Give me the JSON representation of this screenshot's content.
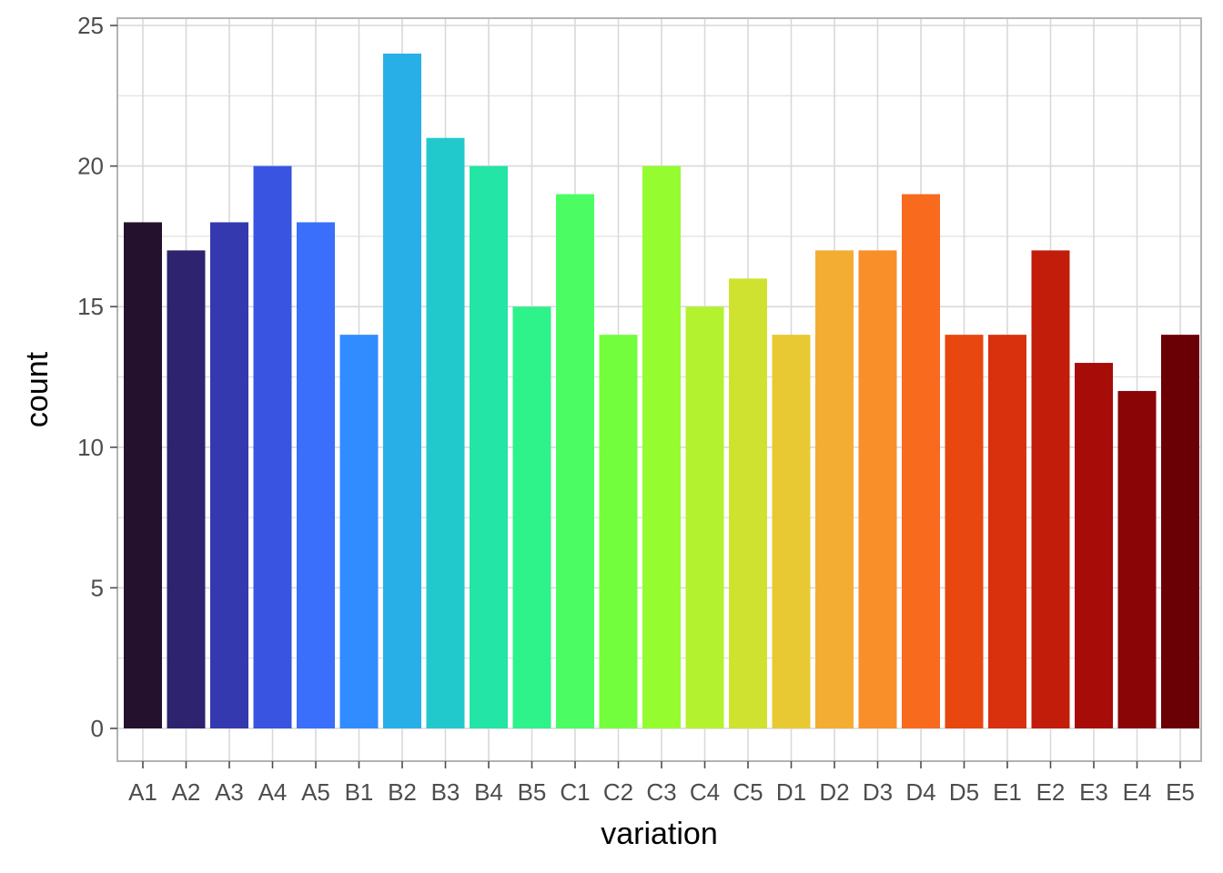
{
  "chart_data": {
    "type": "bar",
    "xlabel": "variation",
    "ylabel": "count",
    "ylim": [
      0,
      25
    ],
    "yticks": [
      0,
      5,
      10,
      15,
      20,
      25
    ],
    "grid": true,
    "legend": "none",
    "categories": [
      "A1",
      "A2",
      "A3",
      "A4",
      "A5",
      "B1",
      "B2",
      "B3",
      "B4",
      "B5",
      "C1",
      "C2",
      "C3",
      "C4",
      "C5",
      "D1",
      "D2",
      "D3",
      "D4",
      "D5",
      "E1",
      "E2",
      "E3",
      "E4",
      "E5"
    ],
    "values": [
      18,
      17,
      18,
      20,
      18,
      14,
      24,
      21,
      20,
      15,
      19,
      14,
      20,
      15,
      16,
      14,
      17,
      17,
      19,
      14,
      14,
      17,
      13,
      12,
      14
    ],
    "colors": [
      "#23112e",
      "#2e236e",
      "#3439b0",
      "#3854e0",
      "#3a6ffb",
      "#318cff",
      "#28afe8",
      "#22c9cc",
      "#23e5a6",
      "#2ef28a",
      "#4bfd62",
      "#73fe3d",
      "#95fc2f",
      "#b3f22f",
      "#cfe22f",
      "#e8c933",
      "#f4ad33",
      "#f88f28",
      "#f86a1e",
      "#e8470f",
      "#d9310d",
      "#c21c0a",
      "#a70c08",
      "#8a0506",
      "#6a0006"
    ],
    "panel_border_color": "#b3b3b3",
    "grid_color": "#d9d9d9"
  }
}
